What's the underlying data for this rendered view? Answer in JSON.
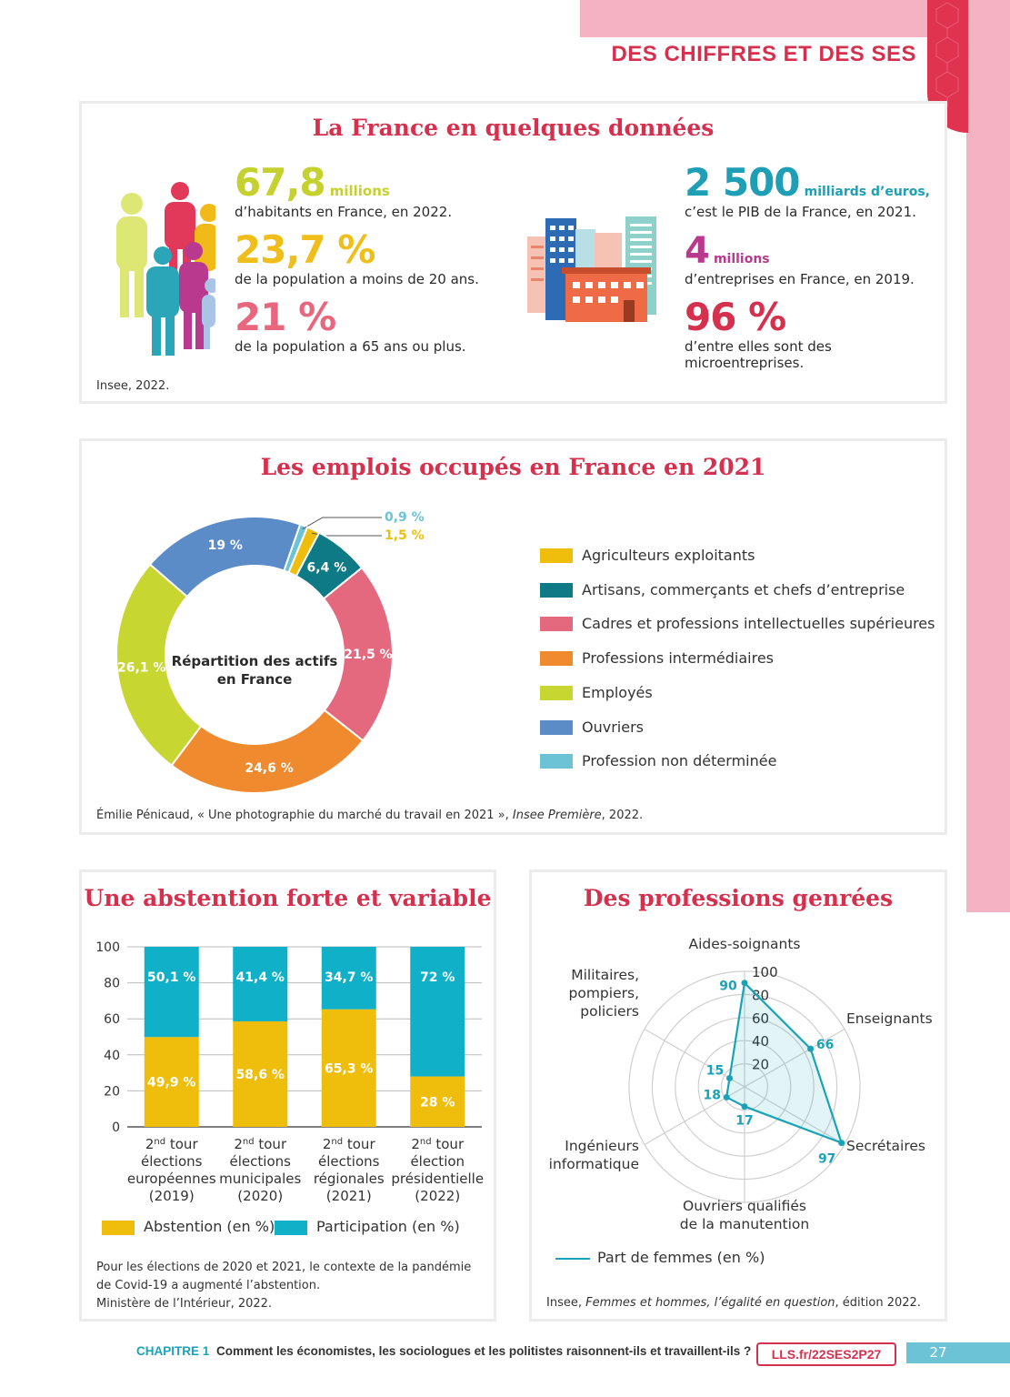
{
  "header": {
    "section_title": "DES CHIFFRES ET DES SES"
  },
  "colors": {
    "accent": "#d6304f",
    "pink_band": "#f4b3c2",
    "teal": "#1aa3b8"
  },
  "card1": {
    "title": "La France en quelques données",
    "stats_left": [
      {
        "value": "67,8",
        "unit": "millions",
        "desc": "d’habitants en France, en 2022.",
        "color": "#c5d12e"
      },
      {
        "value": "23,7 %",
        "unit": "",
        "desc": "de la population a moins de 20 ans.",
        "color": "#efbe1a"
      },
      {
        "value": "21 %",
        "unit": "",
        "desc": "de la population a 65 ans ou plus.",
        "color": "#e8667e"
      }
    ],
    "stats_right": [
      {
        "value": "2 500",
        "unit": "milliards d’euros,",
        "desc": "c’est le PIB de la France, en 2021.",
        "color": "#1e9fb6"
      },
      {
        "value": "4",
        "unit": "millions",
        "desc": "d’entreprises en France, en 2019.",
        "color": "#b8398e"
      },
      {
        "value": "96 %",
        "unit": "",
        "desc": "d’entre elles sont des microentreprises.",
        "color": "#d6304f"
      }
    ],
    "source": "Insee, 2022.",
    "people_icon": "people-group-icon",
    "buildings_icon": "city-buildings-icon"
  },
  "card2": {
    "title": "Les emplois occupés en France en 2021",
    "center_label_1": "Répartition des actifs",
    "center_label_2": "en France",
    "source_plain": "Émilie Pénicaud, « Une photographie du marché du travail en 2021 », ",
    "source_italic": "Insee Première",
    "source_end": ", 2022."
  },
  "card3": {
    "title": "Une abstention forte et variable",
    "note_1": "Pour les élections de 2020 et 2021, le contexte de la pandémie",
    "note_2": "de Covid-19 a augmenté l’abstention.",
    "source": "Ministère de l’Intérieur, 2022."
  },
  "card4": {
    "title": "Des professions genrées",
    "source_plain": "Insee, ",
    "source_italic": "Femmes et hommes, l’égalité en question",
    "source_end": ", édition 2022."
  },
  "chart_data": [
    {
      "type": "pie",
      "variant": "donut",
      "categories": [
        "Agriculteurs exploitants",
        "Artisans, commerçants et chefs d’entreprise",
        "Cadres et professions intellectuelles supérieures",
        "Professions intermédiaires",
        "Employés",
        "Ouvriers",
        "Profession non déterminée"
      ],
      "values": [
        1.5,
        6.4,
        21.5,
        24.6,
        26.1,
        19,
        0.9
      ],
      "labels": [
        "1,5 %",
        "6,4 %",
        "21,5 %",
        "24,6 %",
        "26,1 %",
        "19 %",
        "0,9 %"
      ],
      "colors": [
        "#efbe0c",
        "#0e7a86",
        "#e4697f",
        "#f08a2e",
        "#c8d632",
        "#5b8cc8",
        "#6cc3d5"
      ],
      "legend_position": "right"
    },
    {
      "type": "bar",
      "stacked": true,
      "categories": [
        [
          "2nd tour",
          "élections",
          "européennes",
          "(2019)"
        ],
        [
          "2nd tour",
          "élections",
          "municipales",
          "(2020)"
        ],
        [
          "2nd tour",
          "élections",
          "régionales",
          "(2021)"
        ],
        [
          "2nd tour",
          "élection",
          "présidentielle",
          "(2022)"
        ]
      ],
      "series": [
        {
          "name": "Abstention (en %)",
          "values": [
            49.9,
            58.6,
            65.3,
            28
          ],
          "labels": [
            "49,9 %",
            "58,6 %",
            "65,3 %",
            "28 %"
          ],
          "color": "#efbe0c"
        },
        {
          "name": "Participation (en %)",
          "values": [
            50.1,
            41.4,
            34.7,
            72
          ],
          "labels": [
            "50,1 %",
            "41,4 %",
            "34,7 %",
            "72 %"
          ],
          "color": "#10b0c8"
        }
      ],
      "ylim": [
        0,
        100
      ],
      "yticks": [
        0,
        20,
        40,
        60,
        80,
        100
      ],
      "grid": true,
      "legend_position": "bottom"
    },
    {
      "type": "radar",
      "axes": [
        [
          "Aides-soignants"
        ],
        [
          "Enseignants"
        ],
        [
          "Secrétaires"
        ],
        [
          "Ouvriers qualifiés",
          "de la manutention"
        ],
        [
          "Ingénieurs",
          "informatique"
        ],
        [
          "Militaires,",
          "pompiers,",
          "policiers"
        ]
      ],
      "series": [
        {
          "name": "Part de femmes (en %)",
          "values": [
            90,
            66,
            97,
            17,
            18,
            15
          ],
          "color": "#1aa3b8"
        }
      ],
      "rlim": [
        0,
        100
      ],
      "rticks": [
        20,
        40,
        60,
        80,
        100
      ],
      "legend_position": "bottom-left"
    }
  ],
  "footer": {
    "chapter": "CHAPITRE 1",
    "text": "Comment les économistes, les sociologues et les politistes raisonnent-ils et travaillent-ils ?",
    "link": "LLS.fr/22SES2P27",
    "page_number": "27"
  }
}
